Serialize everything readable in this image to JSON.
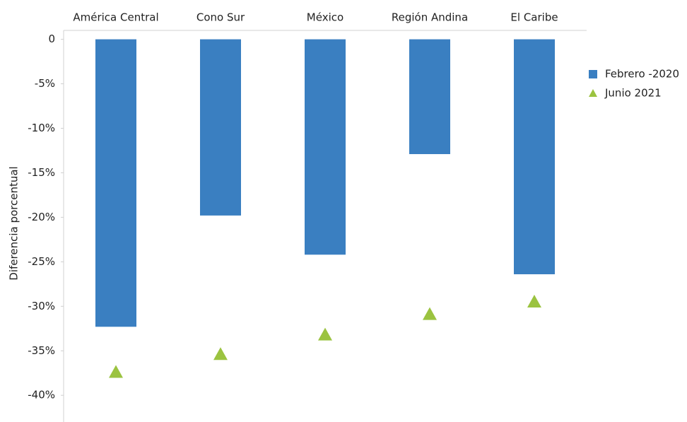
{
  "chart_data": {
    "type": "bar",
    "y_label": "Diferencia porcentual",
    "categories": [
      "América Central",
      "Cono Sur",
      "México",
      "Región Andina",
      "El Caribe"
    ],
    "series": [
      {
        "name": "Febrero -2020",
        "color": "#3a7fc1",
        "marker": "bar",
        "values": [
          -32.3,
          -19.8,
          -24.2,
          -12.9,
          -26.4
        ]
      },
      {
        "name": "Junio 2021",
        "color": "#9bc340",
        "marker": "triangle",
        "values": [
          -37.4,
          -35.4,
          -33.2,
          -30.9,
          -29.5
        ]
      }
    ],
    "ylim": [
      -43,
      1
    ],
    "yticks": [
      0,
      {
        "value": -5,
        "label": "-5%"
      },
      {
        "value": -10,
        "label": "-10%"
      },
      {
        "value": -15,
        "label": "-15%"
      },
      {
        "value": -20,
        "label": "-20%"
      },
      {
        "value": -25,
        "label": "-25%"
      },
      {
        "value": -30,
        "label": "-30%"
      },
      {
        "value": -35,
        "label": "-35%"
      },
      {
        "value": -40,
        "label": "-40%"
      }
    ],
    "legend": "right"
  }
}
